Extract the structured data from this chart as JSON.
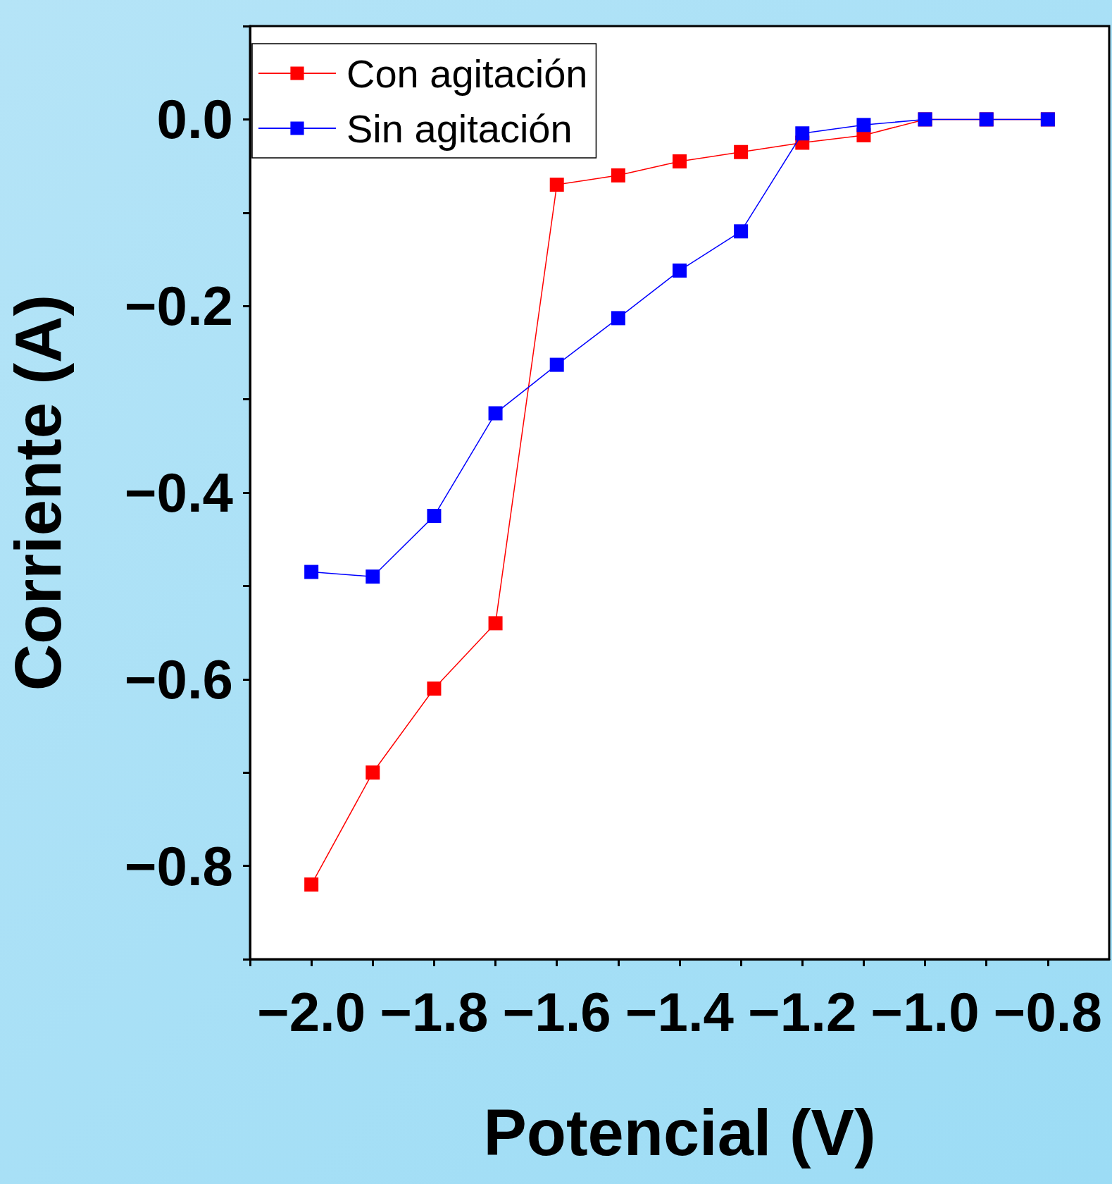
{
  "chart_data": {
    "type": "line",
    "xlabel": "Potencial (V)",
    "ylabel": "Corriente (A)",
    "x": [
      -2.0,
      -1.9,
      -1.8,
      -1.7,
      -1.6,
      -1.5,
      -1.4,
      -1.3,
      -1.2,
      -1.1,
      -1.0,
      -0.9,
      -0.8
    ],
    "series": [
      {
        "name": "Con agitación",
        "color": "#ff0000",
        "values": [
          -0.82,
          -0.7,
          -0.61,
          -0.54,
          -0.07,
          -0.06,
          -0.045,
          -0.035,
          -0.025,
          -0.017,
          0,
          0,
          0
        ]
      },
      {
        "name": "Sin agitación",
        "color": "#0000ff",
        "values": [
          -0.485,
          -0.49,
          -0.425,
          -0.315,
          -0.263,
          -0.213,
          -0.162,
          -0.12,
          -0.015,
          -0.006,
          0,
          0,
          0
        ]
      }
    ],
    "xlim": [
      -2.1,
      -0.7
    ],
    "ylim": [
      -0.9,
      0.1
    ],
    "xticks": [
      {
        "value": -2.1,
        "label": null
      },
      {
        "value": -2.0,
        "label": "−2.0"
      },
      {
        "value": -1.9,
        "label": null
      },
      {
        "value": -1.8,
        "label": "−1.8"
      },
      {
        "value": -1.7,
        "label": null
      },
      {
        "value": -1.6,
        "label": "−1.6"
      },
      {
        "value": -1.5,
        "label": null
      },
      {
        "value": -1.4,
        "label": "−1.4"
      },
      {
        "value": -1.3,
        "label": null
      },
      {
        "value": -1.2,
        "label": "−1.2"
      },
      {
        "value": -1.1,
        "label": null
      },
      {
        "value": -1.0,
        "label": "−1.0"
      },
      {
        "value": -0.9,
        "label": null
      },
      {
        "value": -0.8,
        "label": "−0.8"
      }
    ],
    "yticks": [
      {
        "value": -0.9,
        "label": null
      },
      {
        "value": -0.8,
        "label": "−0.8"
      },
      {
        "value": -0.7,
        "label": null
      },
      {
        "value": -0.6,
        "label": "−0.6"
      },
      {
        "value": -0.5,
        "label": null
      },
      {
        "value": -0.4,
        "label": "−0.4"
      },
      {
        "value": -0.3,
        "label": null
      },
      {
        "value": -0.2,
        "label": "−0.2"
      },
      {
        "value": -0.1,
        "label": null
      },
      {
        "value": 0,
        "label": "0.0"
      },
      {
        "value": 0.1,
        "label": null
      }
    ],
    "legend": "top left",
    "grid": false,
    "marker": "square",
    "line_style": "solid"
  }
}
